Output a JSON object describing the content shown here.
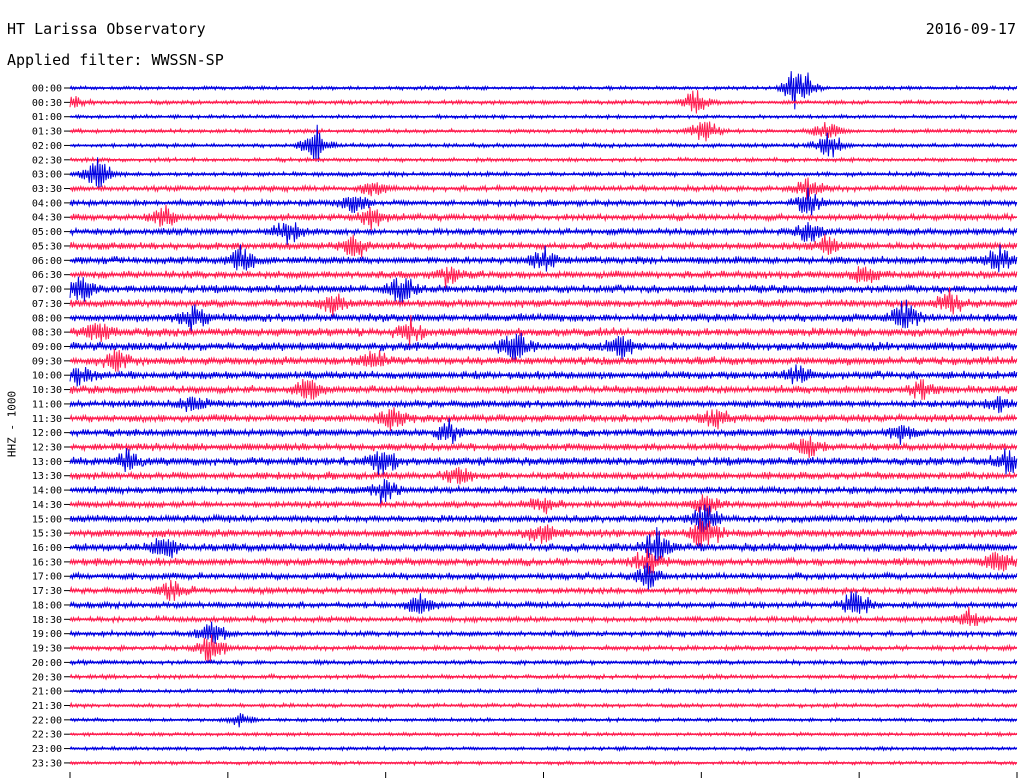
{
  "header": {
    "title": "HT Larissa Observatory",
    "date": "2016-09-17",
    "filter_label": "Applied filter: WWSSN-SP"
  },
  "chart_data": {
    "type": "line",
    "title": "HT Larissa Observatory",
    "ylabel": "HHZ - 1000",
    "xlabel": "",
    "colors": [
      "#0000e0",
      "#ff1e50"
    ],
    "grid": false,
    "rows": [
      {
        "label": "00:00",
        "activity": 0.2,
        "events": [
          {
            "t": 0.77,
            "amp": 1.6
          }
        ]
      },
      {
        "label": "00:30",
        "activity": 0.25,
        "events": [
          {
            "t": 0.0,
            "amp": 0.5
          },
          {
            "t": 0.66,
            "amp": 0.6
          }
        ]
      },
      {
        "label": "01:00",
        "activity": 0.2,
        "events": []
      },
      {
        "label": "01:30",
        "activity": 0.25,
        "events": [
          {
            "t": 0.67,
            "amp": 0.8
          },
          {
            "t": 0.8,
            "amp": 0.6
          }
        ]
      },
      {
        "label": "02:00",
        "activity": 0.25,
        "events": [
          {
            "t": 0.26,
            "amp": 1.0
          },
          {
            "t": 0.8,
            "amp": 0.8
          }
        ]
      },
      {
        "label": "02:30",
        "activity": 0.25,
        "events": []
      },
      {
        "label": "03:00",
        "activity": 0.3,
        "events": [
          {
            "t": 0.03,
            "amp": 1.0
          }
        ]
      },
      {
        "label": "03:30",
        "activity": 0.45,
        "events": [
          {
            "t": 0.32,
            "amp": 0.5
          },
          {
            "t": 0.78,
            "amp": 0.6
          }
        ]
      },
      {
        "label": "04:00",
        "activity": 0.5,
        "events": [
          {
            "t": 0.3,
            "amp": 0.7
          },
          {
            "t": 0.78,
            "amp": 0.7
          }
        ]
      },
      {
        "label": "04:30",
        "activity": 0.6,
        "events": [
          {
            "t": 0.1,
            "amp": 0.6
          },
          {
            "t": 0.32,
            "amp": 0.7
          }
        ]
      },
      {
        "label": "05:00",
        "activity": 0.6,
        "events": [
          {
            "t": 0.23,
            "amp": 0.7
          },
          {
            "t": 0.78,
            "amp": 0.6
          }
        ]
      },
      {
        "label": "05:30",
        "activity": 0.65,
        "events": [
          {
            "t": 0.3,
            "amp": 0.7
          },
          {
            "t": 0.8,
            "amp": 0.6
          }
        ]
      },
      {
        "label": "06:00",
        "activity": 0.7,
        "events": [
          {
            "t": 0.18,
            "amp": 0.8
          },
          {
            "t": 0.5,
            "amp": 0.7
          },
          {
            "t": 0.98,
            "amp": 0.8
          }
        ]
      },
      {
        "label": "06:30",
        "activity": 0.7,
        "events": [
          {
            "t": 0.4,
            "amp": 0.6
          },
          {
            "t": 0.84,
            "amp": 0.6
          }
        ]
      },
      {
        "label": "07:00",
        "activity": 0.75,
        "events": [
          {
            "t": 0.01,
            "amp": 0.8
          },
          {
            "t": 0.35,
            "amp": 0.8
          }
        ]
      },
      {
        "label": "07:30",
        "activity": 0.75,
        "events": [
          {
            "t": 0.28,
            "amp": 0.7
          },
          {
            "t": 0.93,
            "amp": 0.7
          }
        ]
      },
      {
        "label": "08:00",
        "activity": 0.8,
        "events": [
          {
            "t": 0.13,
            "amp": 0.8
          },
          {
            "t": 0.88,
            "amp": 0.9
          }
        ]
      },
      {
        "label": "08:30",
        "activity": 0.8,
        "events": [
          {
            "t": 0.03,
            "amp": 0.6
          },
          {
            "t": 0.36,
            "amp": 0.6
          }
        ]
      },
      {
        "label": "09:00",
        "activity": 0.85,
        "events": [
          {
            "t": 0.47,
            "amp": 1.0
          },
          {
            "t": 0.58,
            "amp": 0.8
          }
        ]
      },
      {
        "label": "09:30",
        "activity": 0.8,
        "events": [
          {
            "t": 0.05,
            "amp": 0.6
          },
          {
            "t": 0.32,
            "amp": 0.6
          }
        ]
      },
      {
        "label": "10:00",
        "activity": 0.75,
        "events": [
          {
            "t": 0.01,
            "amp": 0.5
          },
          {
            "t": 0.77,
            "amp": 0.6
          }
        ]
      },
      {
        "label": "10:30",
        "activity": 0.75,
        "events": [
          {
            "t": 0.25,
            "amp": 0.6
          },
          {
            "t": 0.9,
            "amp": 0.5
          }
        ]
      },
      {
        "label": "11:00",
        "activity": 0.7,
        "events": [
          {
            "t": 0.13,
            "amp": 0.5
          },
          {
            "t": 0.98,
            "amp": 0.5
          }
        ]
      },
      {
        "label": "11:30",
        "activity": 0.7,
        "events": [
          {
            "t": 0.34,
            "amp": 0.7
          },
          {
            "t": 0.68,
            "amp": 0.6
          }
        ]
      },
      {
        "label": "12:00",
        "activity": 0.7,
        "events": [
          {
            "t": 0.4,
            "amp": 0.6
          },
          {
            "t": 0.88,
            "amp": 0.6
          }
        ]
      },
      {
        "label": "12:30",
        "activity": 0.7,
        "events": [
          {
            "t": 0.78,
            "amp": 0.6
          }
        ]
      },
      {
        "label": "13:00",
        "activity": 0.8,
        "events": [
          {
            "t": 0.06,
            "amp": 0.7
          },
          {
            "t": 0.33,
            "amp": 0.9
          },
          {
            "t": 0.99,
            "amp": 0.7
          }
        ]
      },
      {
        "label": "13:30",
        "activity": 0.7,
        "events": [
          {
            "t": 0.41,
            "amp": 0.6
          }
        ]
      },
      {
        "label": "14:00",
        "activity": 0.65,
        "events": [
          {
            "t": 0.33,
            "amp": 0.8
          }
        ]
      },
      {
        "label": "14:30",
        "activity": 0.6,
        "events": [
          {
            "t": 0.5,
            "amp": 0.5
          },
          {
            "t": 0.67,
            "amp": 0.6
          }
        ]
      },
      {
        "label": "15:00",
        "activity": 0.65,
        "events": [
          {
            "t": 0.67,
            "amp": 1.0
          }
        ]
      },
      {
        "label": "15:30",
        "activity": 0.75,
        "events": [
          {
            "t": 0.5,
            "amp": 0.6
          },
          {
            "t": 0.67,
            "amp": 1.0
          }
        ]
      },
      {
        "label": "16:00",
        "activity": 0.8,
        "events": [
          {
            "t": 0.1,
            "amp": 0.7
          },
          {
            "t": 0.62,
            "amp": 1.0
          }
        ]
      },
      {
        "label": "16:30",
        "activity": 0.7,
        "events": [
          {
            "t": 0.61,
            "amp": 0.7
          },
          {
            "t": 0.98,
            "amp": 0.8
          }
        ]
      },
      {
        "label": "17:00",
        "activity": 0.6,
        "events": [
          {
            "t": 0.61,
            "amp": 0.6
          }
        ]
      },
      {
        "label": "17:30",
        "activity": 0.55,
        "events": [
          {
            "t": 0.11,
            "amp": 0.7
          }
        ]
      },
      {
        "label": "18:00",
        "activity": 0.5,
        "events": [
          {
            "t": 0.37,
            "amp": 0.6
          },
          {
            "t": 0.83,
            "amp": 0.9
          }
        ]
      },
      {
        "label": "18:30",
        "activity": 0.45,
        "events": [
          {
            "t": 0.95,
            "amp": 0.6
          }
        ]
      },
      {
        "label": "19:00",
        "activity": 0.4,
        "events": [
          {
            "t": 0.15,
            "amp": 0.7
          }
        ]
      },
      {
        "label": "19:30",
        "activity": 0.35,
        "events": [
          {
            "t": 0.15,
            "amp": 0.9
          }
        ]
      },
      {
        "label": "20:00",
        "activity": 0.3,
        "events": []
      },
      {
        "label": "20:30",
        "activity": 0.3,
        "events": []
      },
      {
        "label": "21:00",
        "activity": 0.25,
        "events": []
      },
      {
        "label": "21:30",
        "activity": 0.25,
        "events": []
      },
      {
        "label": "22:00",
        "activity": 0.2,
        "events": [
          {
            "t": 0.18,
            "amp": 0.4
          }
        ]
      },
      {
        "label": "22:30",
        "activity": 0.2,
        "events": []
      },
      {
        "label": "23:00",
        "activity": 0.2,
        "events": []
      },
      {
        "label": "23:30",
        "activity": 0.2,
        "events": []
      }
    ]
  }
}
